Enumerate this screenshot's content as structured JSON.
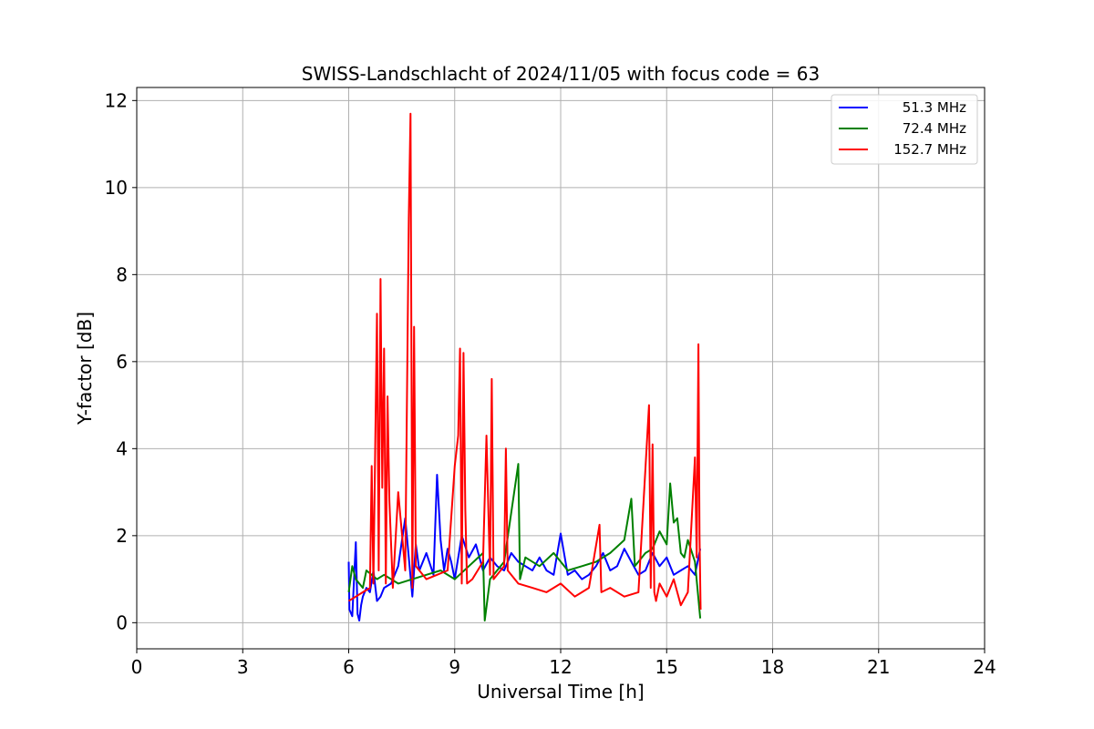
{
  "chart_data": {
    "type": "line",
    "title": "SWISS-Landschlacht of 2024/11/05 with focus code = 63",
    "xlabel": "Universal Time [h]",
    "ylabel": "Y-factor [dB]",
    "xlim": [
      0,
      24
    ],
    "ylim": [
      -0.6,
      12.3
    ],
    "xticks": [
      "0",
      "3",
      "6",
      "9",
      "12",
      "15",
      "18",
      "21",
      "24"
    ],
    "yticks": [
      "0",
      "2",
      "4",
      "6",
      "8",
      "10",
      "12"
    ],
    "grid": true,
    "legend_position": "top-right",
    "series": [
      {
        "name": "51.3 MHz",
        "color": "#0000ff",
        "x": [
          6.0,
          6.02,
          6.1,
          6.2,
          6.25,
          6.3,
          6.35,
          6.4,
          6.5,
          6.6,
          6.7,
          6.8,
          6.9,
          7.0,
          7.2,
          7.4,
          7.6,
          7.8,
          7.9,
          8.0,
          8.2,
          8.4,
          8.5,
          8.6,
          8.7,
          8.8,
          8.9,
          9.0,
          9.2,
          9.4,
          9.6,
          9.8,
          10.0,
          10.2,
          10.4,
          10.6,
          10.8,
          11.0,
          11.2,
          11.4,
          11.6,
          11.8,
          12.0,
          12.2,
          12.4,
          12.6,
          12.8,
          13.0,
          13.2,
          13.4,
          13.6,
          13.8,
          14.0,
          14.2,
          14.4,
          14.6,
          14.8,
          15.0,
          15.2,
          15.4,
          15.6,
          15.8,
          15.95
        ],
        "y": [
          1.4,
          0.3,
          0.15,
          1.85,
          0.2,
          0.05,
          0.4,
          0.6,
          0.8,
          0.7,
          1.2,
          0.5,
          0.6,
          0.8,
          0.9,
          1.3,
          2.4,
          0.6,
          1.8,
          1.2,
          1.6,
          1.1,
          3.4,
          1.9,
          1.2,
          1.7,
          1.4,
          1.0,
          2.0,
          1.5,
          1.8,
          1.2,
          1.5,
          1.3,
          1.2,
          1.6,
          1.4,
          1.3,
          1.2,
          1.5,
          1.2,
          1.1,
          2.05,
          1.1,
          1.2,
          1.0,
          1.1,
          1.3,
          1.6,
          1.2,
          1.3,
          1.7,
          1.4,
          1.1,
          1.2,
          1.6,
          1.3,
          1.5,
          1.1,
          1.2,
          1.3,
          1.1,
          1.7
        ]
      },
      {
        "name": "72.4 MHz",
        "color": "#008000",
        "x": [
          6.0,
          6.1,
          6.2,
          6.3,
          6.4,
          6.5,
          6.8,
          7.0,
          7.4,
          7.8,
          8.2,
          8.6,
          9.0,
          9.4,
          9.8,
          9.85,
          10.0,
          10.4,
          10.8,
          10.85,
          11.0,
          11.4,
          11.8,
          12.2,
          12.6,
          13.0,
          13.4,
          13.8,
          14.0,
          14.1,
          14.4,
          14.6,
          14.8,
          15.0,
          15.1,
          15.2,
          15.3,
          15.4,
          15.5,
          15.6,
          15.8,
          15.95
        ],
        "y": [
          0.7,
          1.3,
          1.0,
          0.9,
          0.8,
          1.2,
          1.0,
          1.1,
          0.9,
          1.0,
          1.1,
          1.2,
          1.0,
          1.3,
          1.6,
          0.05,
          1.0,
          1.4,
          3.65,
          1.0,
          1.5,
          1.3,
          1.6,
          1.2,
          1.3,
          1.4,
          1.6,
          1.9,
          2.85,
          1.3,
          1.6,
          1.7,
          2.1,
          1.8,
          3.2,
          2.3,
          2.4,
          1.6,
          1.5,
          1.9,
          1.4,
          0.1
        ]
      },
      {
        "name": "152.7 MHz",
        "color": "#ff0000",
        "x": [
          6.0,
          6.2,
          6.4,
          6.6,
          6.65,
          6.7,
          6.8,
          6.85,
          6.9,
          6.95,
          7.0,
          7.05,
          7.1,
          7.15,
          7.25,
          7.4,
          7.6,
          7.7,
          7.75,
          7.8,
          7.85,
          7.9,
          8.2,
          8.5,
          8.8,
          9.0,
          9.1,
          9.15,
          9.2,
          9.25,
          9.3,
          9.35,
          9.5,
          9.8,
          9.9,
          10.0,
          10.05,
          10.1,
          10.4,
          10.45,
          10.5,
          10.8,
          11.2,
          11.6,
          12.0,
          12.4,
          12.8,
          13.1,
          13.15,
          13.4,
          13.8,
          14.2,
          14.5,
          14.55,
          14.6,
          14.65,
          14.7,
          14.8,
          15.0,
          15.2,
          15.4,
          15.6,
          15.8,
          15.85,
          15.9,
          15.93,
          15.96
        ],
        "y": [
          0.5,
          0.6,
          0.7,
          0.8,
          3.6,
          0.9,
          7.1,
          1.2,
          7.9,
          3.1,
          6.3,
          0.9,
          5.2,
          2.8,
          0.8,
          3.0,
          1.2,
          9.3,
          11.7,
          0.8,
          6.8,
          1.3,
          1.0,
          1.1,
          1.2,
          3.6,
          4.3,
          6.3,
          0.9,
          6.2,
          2.6,
          0.9,
          1.0,
          1.4,
          4.3,
          1.1,
          5.6,
          1.0,
          1.3,
          4.0,
          1.2,
          0.9,
          0.8,
          0.7,
          0.9,
          0.6,
          0.8,
          2.25,
          0.7,
          0.8,
          0.6,
          0.7,
          5.0,
          0.8,
          4.1,
          0.7,
          0.5,
          0.9,
          0.6,
          1.0,
          0.4,
          0.7,
          3.8,
          1.5,
          6.4,
          2.0,
          0.3
        ]
      }
    ]
  }
}
